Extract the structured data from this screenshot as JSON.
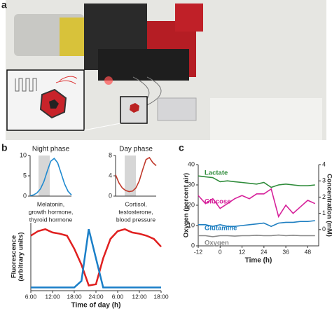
{
  "panel_labels": [
    "a",
    "b",
    "c"
  ],
  "chart_data": [
    {
      "type": "line",
      "title": "Night phase",
      "annotation": [
        "Melatonin,",
        "growth hormone,",
        "thyroid hormone"
      ],
      "categories": [
        null,
        null,
        null,
        null,
        null,
        null,
        null,
        null,
        null,
        null,
        null,
        null,
        null
      ],
      "series": [
        {
          "color": "#1f8ad0",
          "values": [
            0.1,
            0.3,
            0.8,
            1.8,
            3.6,
            6.2,
            8.6,
            9.3,
            8.2,
            5.6,
            3.0,
            1.2,
            0.3
          ]
        }
      ],
      "ylim": [
        0,
        10
      ],
      "yticks": [
        0,
        5,
        10
      ]
    },
    {
      "type": "line",
      "title": "Day phase",
      "annotation": [
        "Cortisol,",
        "testosterone,",
        "blood pressure"
      ],
      "categories": [
        null,
        null,
        null,
        null,
        null,
        null,
        null,
        null,
        null,
        null,
        null,
        null,
        null
      ],
      "series": [
        {
          "color": "#c0392b",
          "values": [
            4.2,
            2.6,
            1.6,
            1.1,
            0.9,
            1.0,
            1.6,
            3.0,
            5.2,
            7.2,
            7.6,
            6.6,
            6.0
          ]
        }
      ],
      "ylim": [
        0,
        8
      ],
      "yticks": [
        0,
        4,
        8
      ]
    },
    {
      "type": "line",
      "ylabel": [
        "Fluorescence",
        "(arbitrary units)"
      ],
      "xlabel": "Time of day (h)",
      "x": [
        6,
        8,
        10,
        12,
        14,
        16,
        18,
        20,
        22,
        24,
        26,
        28,
        30,
        32,
        34,
        36,
        38,
        40,
        42
      ],
      "series": [
        {
          "color": "#e02020",
          "values": [
            0.85,
            0.92,
            0.95,
            0.9,
            0.88,
            0.85,
            0.65,
            0.4,
            0.08,
            0.1,
            0.5,
            0.8,
            0.92,
            0.95,
            0.9,
            0.88,
            0.85,
            0.8,
            0.68
          ]
        },
        {
          "color": "#1a7fc8",
          "values": [
            0.05,
            0.05,
            0.05,
            0.05,
            0.05,
            0.05,
            0.05,
            0.15,
            0.95,
            0.5,
            0.05,
            0.05,
            0.05,
            0.05,
            0.05,
            0.05,
            0.05,
            0.05,
            0.05
          ]
        }
      ],
      "xlim": [
        6,
        42
      ],
      "xticks": [
        {
          "value": 6,
          "label": "6:00"
        },
        {
          "value": 12,
          "label": "12:00"
        },
        {
          "value": 18,
          "label": "18:00"
        },
        {
          "value": 24,
          "label": "24:00"
        },
        {
          "value": 30,
          "label": "6:00"
        },
        {
          "value": 36,
          "label": "12:00"
        },
        {
          "value": 42,
          "label": "18:00"
        }
      ],
      "ylim": [
        0,
        1.05
      ]
    },
    {
      "type": "line",
      "ylabel": [
        "Oxygen (percent air)"
      ],
      "y2label": "Concentration (mM)",
      "xlabel": "Time (h)",
      "x": [
        -12,
        -8,
        -4,
        0,
        4,
        8,
        12,
        16,
        20,
        24,
        28,
        32,
        36,
        40,
        44,
        48,
        52
      ],
      "series": [
        {
          "name": "Lactate",
          "color": "#2e8b3a",
          "axis": "y2",
          "values": [
            3.3,
            3.25,
            3.2,
            2.95,
            3.0,
            2.95,
            2.9,
            2.85,
            2.8,
            2.9,
            2.6,
            2.75,
            2.8,
            2.75,
            2.7,
            2.7,
            2.75
          ]
        },
        {
          "name": "Glucose",
          "color": "#d6219a",
          "axis": "y2",
          "values": [
            2.1,
            1.6,
            1.9,
            1.3,
            1.6,
            1.9,
            2.1,
            1.9,
            2.2,
            2.2,
            2.5,
            0.8,
            1.5,
            1.0,
            1.4,
            1.8,
            1.6
          ]
        },
        {
          "name": "Glutamine",
          "color": "#1f7fc1",
          "axis": "y2",
          "values": [
            0.3,
            0.3,
            0.2,
            0.3,
            0.2,
            0.2,
            0.25,
            0.3,
            0.35,
            0.4,
            0.2,
            0.4,
            0.45,
            0.45,
            0.5,
            0.5,
            0.55
          ]
        },
        {
          "name": "Oxygen",
          "color": "#888888",
          "values": [
            5,
            5,
            4.5,
            5,
            5,
            4.8,
            5,
            5,
            5.2,
            5,
            5,
            5.3,
            5,
            5.2,
            5,
            5,
            5
          ]
        }
      ],
      "xlim": [
        -12,
        54
      ],
      "xticks": [
        -12,
        0,
        12,
        24,
        36,
        48
      ],
      "ylim": [
        0,
        40
      ],
      "yticks": [
        0,
        10,
        20,
        30,
        40
      ],
      "y2lim": [
        -1,
        4
      ],
      "y2ticks": [
        0,
        1,
        2,
        3,
        4
      ]
    }
  ]
}
